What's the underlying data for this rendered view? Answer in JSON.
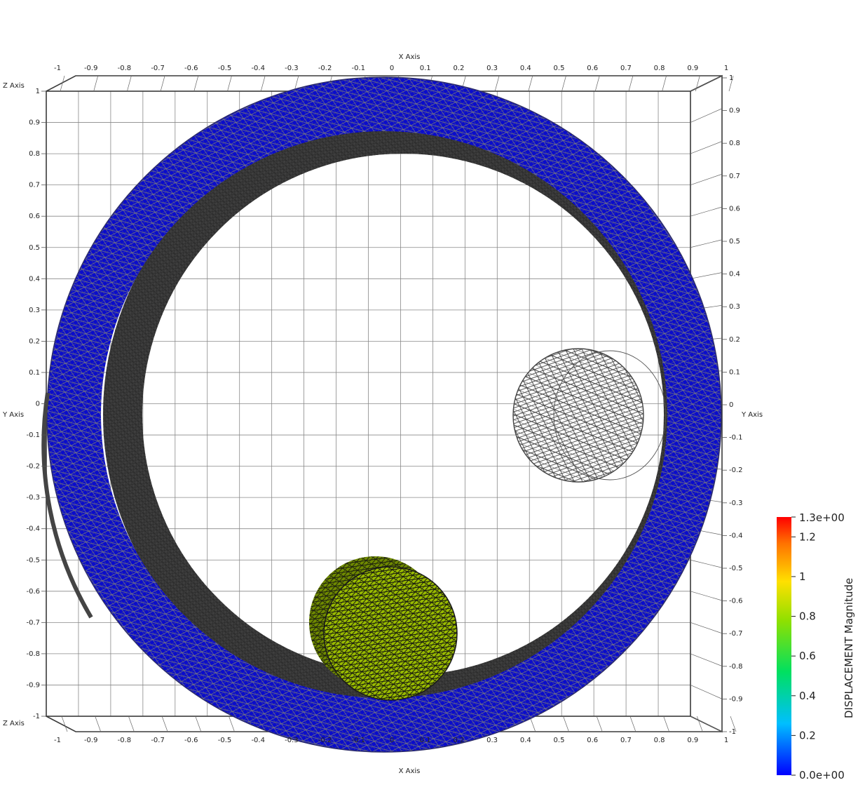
{
  "axes": {
    "x_title": "X Axis",
    "y_title": "Y Axis",
    "z_title": "Z Axis",
    "x_ticks": [
      "-1",
      "-0.9",
      "-0.8",
      "-0.7",
      "-0.6",
      "-0.5",
      "-0.4",
      "-0.3",
      "-0.2",
      "-0.1",
      "0",
      "0.1",
      "0.2",
      "0.3",
      "0.4",
      "0.5",
      "0.6",
      "0.7",
      "0.8",
      "0.9",
      "1"
    ],
    "z_ticks": [
      "1",
      "0.9",
      "0.8",
      "0.7",
      "0.6",
      "0.5",
      "0.4",
      "0.3",
      "0.2",
      "0.1",
      "0",
      "-0.1",
      "-0.2",
      "-0.3",
      "-0.4",
      "-0.5",
      "-0.6",
      "-0.7",
      "-0.8",
      "-0.9",
      "-1"
    ],
    "y_ticks": [
      "1",
      "0.9",
      "0.8",
      "0.7",
      "0.6",
      "0.5",
      "0.4",
      "0.3",
      "0.2",
      "0.1",
      "0",
      "-0.1",
      "-0.2",
      "-0.3",
      "-0.4",
      "-0.5",
      "-0.6",
      "-0.7",
      "-0.8",
      "-0.9",
      "-1"
    ]
  },
  "colorbar": {
    "title": "DISPLACEMENT Magnitude",
    "max_label": "1.3e+00",
    "min_label": "0.0e+00",
    "ticks": [
      "1.2",
      "1",
      "0.8",
      "0.6",
      "0.4",
      "0.2"
    ],
    "tick_values": [
      1.2,
      1.0,
      0.8,
      0.6,
      0.4,
      0.2
    ],
    "range": [
      0,
      1.3
    ]
  },
  "scene": {
    "ring_color": "#0a0ccc",
    "sphere_color": "#99bb00",
    "mesh_color": "#444444"
  }
}
